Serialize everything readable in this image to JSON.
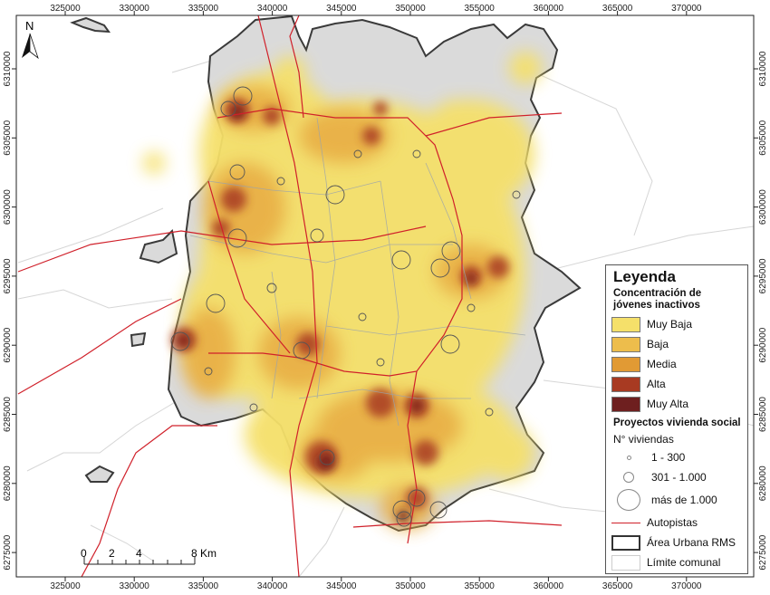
{
  "map": {
    "x_ticks": [
      "325000",
      "330000",
      "335000",
      "340000",
      "345000",
      "350000",
      "355000",
      "360000",
      "365000",
      "370000"
    ],
    "y_ticks": [
      "6310000",
      "6305000",
      "6300000",
      "6295000",
      "6290000",
      "6285000",
      "6280000",
      "6275000"
    ],
    "north_label": "N",
    "scale_bar": {
      "labels": [
        "0",
        "2",
        "4",
        "8 Km"
      ]
    }
  },
  "legend": {
    "title": "Leyenda",
    "heat_title": "Concentración de jóvenes inactivos",
    "heat_classes": [
      {
        "label": "Muy Baja",
        "color": "#f5e06a"
      },
      {
        "label": "Baja",
        "color": "#edbd4c"
      },
      {
        "label": "Media",
        "color": "#e19a34"
      },
      {
        "label": "Alta",
        "color": "#a83a22"
      },
      {
        "label": "Muy Alta",
        "color": "#6e1f1f"
      }
    ],
    "projects_title": "Proyectos vivienda social",
    "units_label": "N° viviendas",
    "sizes": [
      {
        "label": "1 - 300"
      },
      {
        "label": "301 - 1.000"
      },
      {
        "label": "más de 1.000"
      }
    ],
    "highways": {
      "label": "Autopistas",
      "color": "#d0202a"
    },
    "urban_area": {
      "label": "Área Urbana RMS"
    },
    "communes": {
      "label": "Límite comunal"
    }
  }
}
